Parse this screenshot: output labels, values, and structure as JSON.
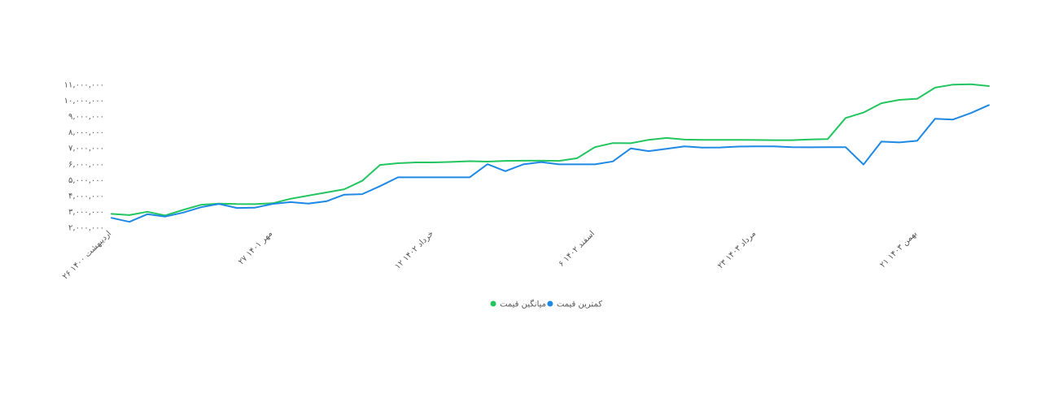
{
  "chart_data": {
    "type": "line",
    "title": "",
    "xlabel": "",
    "ylabel": "",
    "ylim": [
      2000000,
      11000000
    ],
    "y_ticks": [
      {
        "value": 2000000,
        "label": "۲,۰۰۰,۰۰۰"
      },
      {
        "value": 3000000,
        "label": "۳,۰۰۰,۰۰۰"
      },
      {
        "value": 4000000,
        "label": "۴,۰۰۰,۰۰۰"
      },
      {
        "value": 5000000,
        "label": "۵,۰۰۰,۰۰۰"
      },
      {
        "value": 6000000,
        "label": "۶,۰۰۰,۰۰۰"
      },
      {
        "value": 7000000,
        "label": "۷,۰۰۰,۰۰۰"
      },
      {
        "value": 8000000,
        "label": "۸,۰۰۰,۰۰۰"
      },
      {
        "value": 9000000,
        "label": "۹,۰۰۰,۰۰۰"
      },
      {
        "value": 10000000,
        "label": "۱۰,۰۰۰,۰۰۰"
      },
      {
        "value": 11000000,
        "label": "۱۱,۰۰۰,۰۰۰"
      }
    ],
    "x_ticks": [
      {
        "index": 0,
        "label": "۲۶ اردیبهشت ۱۴۰۰"
      },
      {
        "index": 9,
        "label": "۲۷ مهر ۱۴۰۱"
      },
      {
        "index": 18,
        "label": "۱۲ خرداد ۱۴۰۲"
      },
      {
        "index": 27,
        "label": "۶ اسفند ۱۴۰۲"
      },
      {
        "index": 36,
        "label": "۲۳ مرداد ۱۴۰۳"
      },
      {
        "index": 45,
        "label": "۲۱ بهمن ۱۴۰۳"
      }
    ],
    "n_points": 50,
    "grid": false,
    "legend_position": "bottom-center",
    "series": [
      {
        "name": "میانگین قیمت",
        "color": "#22c55e",
        "values": [
          2850000,
          2770000,
          2980000,
          2750000,
          3100000,
          3420000,
          3500000,
          3470000,
          3460000,
          3520000,
          3800000,
          4000000,
          4200000,
          4400000,
          4930000,
          5930000,
          6040000,
          6090000,
          6090000,
          6120000,
          6170000,
          6140000,
          6190000,
          6200000,
          6200000,
          6190000,
          6350000,
          7050000,
          7310000,
          7300000,
          7510000,
          7630000,
          7530000,
          7510000,
          7510000,
          7510000,
          7500000,
          7490000,
          7490000,
          7540000,
          7560000,
          8890000,
          9230000,
          9820000,
          10030000,
          10100000,
          10800000,
          10990000,
          11010000,
          10900000
        ]
      },
      {
        "name": "کمترین قیمت",
        "color": "#1e88e5",
        "values": [
          2600000,
          2350000,
          2830000,
          2680000,
          2930000,
          3270000,
          3480000,
          3220000,
          3240000,
          3480000,
          3590000,
          3500000,
          3640000,
          4060000,
          4090000,
          4600000,
          5150000,
          5150000,
          5150000,
          5150000,
          5150000,
          5980000,
          5540000,
          5970000,
          6110000,
          5970000,
          5970000,
          5970000,
          6150000,
          6970000,
          6800000,
          6950000,
          7100000,
          7020000,
          7030000,
          7090000,
          7100000,
          7100000,
          7050000,
          7040000,
          7050000,
          7050000,
          5960000,
          7400000,
          7350000,
          7450000,
          8840000,
          8790000,
          9200000,
          9700000
        ]
      }
    ]
  }
}
